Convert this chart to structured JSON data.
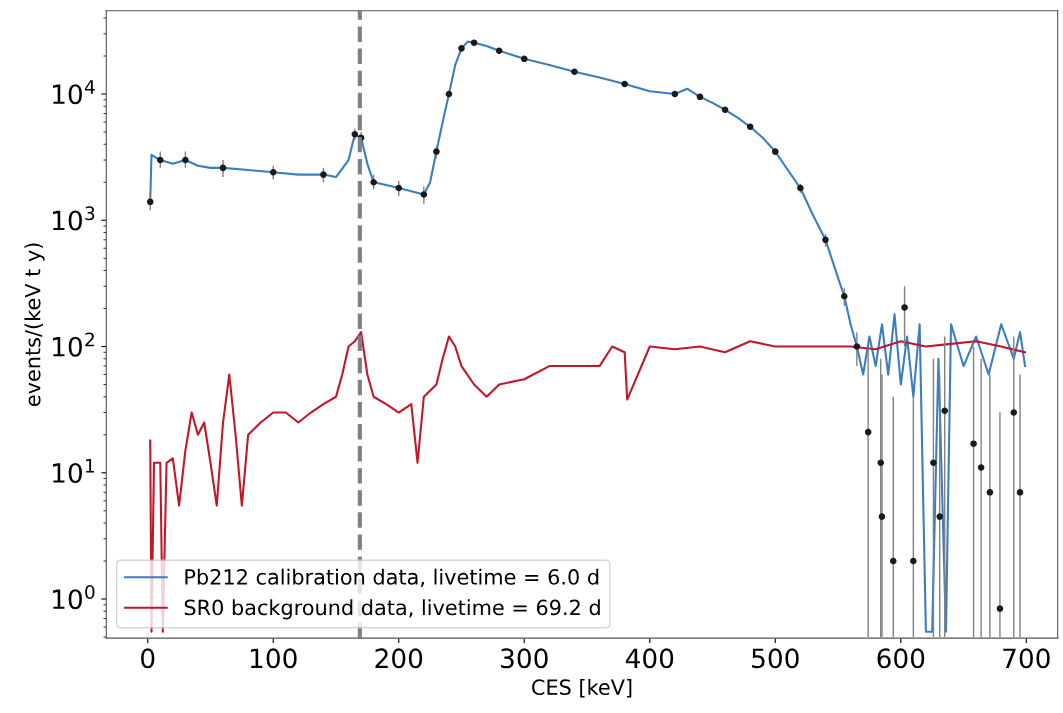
{
  "chart_data": {
    "type": "line",
    "xlabel": "CES [keV]",
    "ylabel": "events/(keV t y)",
    "log": "y",
    "xlim": [
      -33,
      725
    ],
    "ylim": [
      0.49,
      45700
    ],
    "xticks": [
      0,
      100,
      200,
      300,
      400,
      500,
      600,
      700
    ],
    "yticks": [
      {
        "value": 1,
        "label": "10$^{0}$"
      },
      {
        "value": 10,
        "label": "10$^{1}$"
      },
      {
        "value": 100,
        "label": "10$^{2}$"
      },
      {
        "value": 1000,
        "label": "10$^{3}$"
      },
      {
        "value": 10000,
        "label": "10$^{4}$"
      }
    ],
    "grid": false,
    "legend": "bottom left",
    "ref_lines": [
      {
        "axis": "x",
        "value": 169,
        "color": "#808080",
        "line_style": "dashed"
      }
    ],
    "series": [
      {
        "name": "Pb212 calibration data, livetime = 6.0 d",
        "color": "#3b7dbf",
        "x": [
          2,
          3,
          10,
          20,
          30,
          40,
          50,
          60,
          80,
          100,
          120,
          140,
          150,
          160,
          165,
          170,
          175,
          180,
          190,
          200,
          210,
          220,
          225,
          230,
          235,
          240,
          245,
          250,
          255,
          260,
          270,
          280,
          300,
          320,
          340,
          360,
          380,
          400,
          420,
          430,
          440,
          450,
          460,
          470,
          480,
          490,
          500,
          510,
          520,
          530,
          540,
          550,
          555,
          560,
          565,
          570,
          575,
          580,
          585,
          590,
          595,
          600,
          605,
          610,
          615,
          620,
          625,
          630,
          636,
          640,
          650,
          660,
          670,
          680,
          690,
          695,
          699
        ],
        "values": [
          1400,
          3300,
          3000,
          2800,
          3000,
          2700,
          2600,
          2600,
          2500,
          2400,
          2300,
          2300,
          2200,
          3000,
          4800,
          4500,
          2800,
          2000,
          1900,
          1800,
          1700,
          1600,
          2000,
          3500,
          6000,
          10000,
          17000,
          23000,
          26000,
          25500,
          24000,
          22000,
          19000,
          17000,
          15000,
          13500,
          12000,
          10500,
          10000,
          11000,
          9500,
          8500,
          7500,
          6500,
          5500,
          4500,
          3500,
          2500,
          1800,
          1100,
          700,
          350,
          250,
          150,
          100,
          60,
          120,
          70,
          150,
          60,
          180,
          50,
          120,
          40,
          150,
          0.55,
          0.55,
          80,
          0.55,
          150,
          70,
          120,
          60,
          150,
          80,
          130,
          70
        ]
      },
      {
        "name": "SR0 background data, livetime = 69.2 d",
        "color": "#c0182a",
        "x": [
          2,
          3,
          5,
          10,
          12,
          15,
          20,
          25,
          30,
          35,
          40,
          45,
          50,
          55,
          60,
          65,
          70,
          75,
          80,
          90,
          100,
          110,
          120,
          130,
          140,
          150,
          155,
          160,
          165,
          170,
          175,
          180,
          190,
          200,
          210,
          215,
          220,
          230,
          235,
          240,
          245,
          250,
          260,
          270,
          280,
          300,
          320,
          340,
          360,
          370,
          380,
          382,
          400,
          420,
          440,
          460,
          480,
          500,
          520,
          540,
          560,
          580,
          600,
          620,
          640,
          660,
          680,
          699
        ],
        "values": [
          18,
          0.55,
          12,
          12,
          0.55,
          12,
          13,
          5.5,
          15,
          30,
          20,
          25,
          12,
          5.5,
          25,
          60,
          20,
          5.5,
          20,
          25,
          30,
          30,
          25,
          30,
          35,
          40,
          60,
          100,
          110,
          130,
          60,
          40,
          35,
          30,
          35,
          12,
          40,
          50,
          80,
          120,
          100,
          70,
          50,
          40,
          50,
          55,
          70,
          70,
          70,
          100,
          90,
          38,
          100,
          95,
          100,
          90,
          110,
          100,
          100,
          100,
          100,
          95,
          110,
          100,
          105,
          110,
          100,
          90
        ]
      },
      {
        "type": "scatter",
        "color": "#1a1a1a",
        "marker": "circle",
        "x": [
          2,
          10,
          30,
          60,
          100,
          140,
          165,
          170,
          180,
          200,
          220,
          230,
          240,
          250,
          260,
          280,
          300,
          340,
          380,
          420,
          440,
          460,
          480,
          500,
          520,
          540,
          555,
          565,
          574,
          584,
          585,
          594,
          603,
          610,
          626,
          631,
          635,
          658,
          664,
          671,
          679,
          690,
          695
        ],
        "values": [
          1400,
          3000,
          3000,
          2600,
          2400,
          2300,
          4800,
          4500,
          2000,
          1800,
          1600,
          3500,
          10000,
          23000,
          25500,
          22000,
          19000,
          15000,
          12000,
          10000,
          9500,
          7500,
          5500,
          3500,
          1800,
          700,
          250,
          100,
          21,
          12,
          4.5,
          2.0,
          204,
          2.0,
          12,
          4.5,
          31,
          17,
          11,
          7,
          0.84,
          30,
          7
        ],
        "errors": [
          [
            1200,
            1650
          ],
          [
            2600,
            3500
          ],
          [
            2600,
            3500
          ],
          [
            2200,
            3000
          ],
          [
            2100,
            2700
          ],
          [
            2000,
            2600
          ],
          [
            4300,
            5300
          ],
          [
            4000,
            5000
          ],
          [
            1750,
            2300
          ],
          [
            1550,
            2050
          ],
          [
            1350,
            1850
          ],
          [
            3100,
            3900
          ],
          [
            9400,
            10600
          ],
          [
            22000,
            24000
          ],
          [
            24500,
            26500
          ],
          [
            21000,
            23000
          ],
          [
            18200,
            19800
          ],
          [
            14300,
            15700
          ],
          [
            11400,
            12600
          ],
          [
            9500,
            10500
          ],
          [
            9000,
            10000
          ],
          [
            7100,
            7900
          ],
          [
            5200,
            5800
          ],
          [
            3300,
            3700
          ],
          [
            1650,
            1950
          ],
          [
            620,
            780
          ],
          [
            210,
            290
          ],
          [
            70,
            130
          ],
          [
            0.5,
            100
          ],
          [
            0.5,
            80
          ],
          [
            0.5,
            60
          ],
          [
            0.5,
            40
          ],
          [
            100,
            300
          ],
          [
            0.5,
            40
          ],
          [
            0.5,
            80
          ],
          [
            0.5,
            60
          ],
          [
            0.5,
            120
          ],
          [
            0.5,
            100
          ],
          [
            0.5,
            80
          ],
          [
            0.5,
            60
          ],
          [
            0.5,
            30
          ],
          [
            0.5,
            120
          ],
          [
            0.5,
            60
          ]
        ]
      }
    ]
  }
}
